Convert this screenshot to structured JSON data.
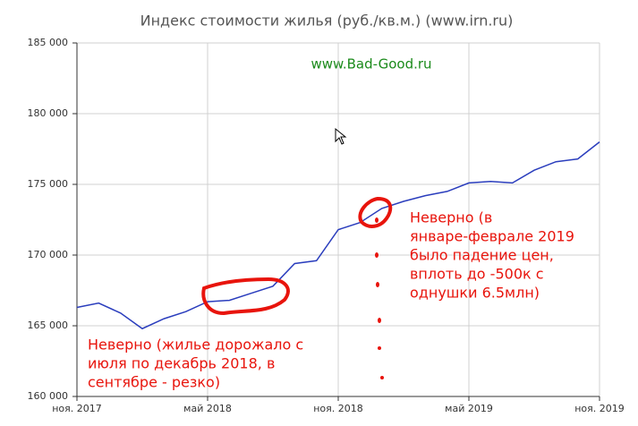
{
  "chart_data": {
    "type": "line",
    "title": "Индекс стоимости жилья (руб./кв.м.) (www.irn.ru)",
    "watermark": "www.Bad-Good.ru",
    "x": [
      "2017-11",
      "2017-12",
      "2018-01",
      "2018-02",
      "2018-03",
      "2018-04",
      "2018-05",
      "2018-06",
      "2018-07",
      "2018-08",
      "2018-09",
      "2018-10",
      "2018-11",
      "2018-12",
      "2019-01",
      "2019-02",
      "2019-03",
      "2019-04",
      "2019-05",
      "2019-06",
      "2019-07",
      "2019-08",
      "2019-09",
      "2019-10",
      "2019-11"
    ],
    "series": [
      {
        "color": "#2a3dbd",
        "values": [
          166300,
          166600,
          165900,
          164800,
          165500,
          166000,
          166700,
          166800,
          167300,
          167800,
          169400,
          169600,
          171800,
          172300,
          173300,
          173800,
          174200,
          174500,
          175100,
          175200,
          175100,
          176000,
          176600,
          176800,
          178000
        ]
      }
    ],
    "xlim": [
      "2017-11",
      "2019-11"
    ],
    "xticks": [
      {
        "value": "2017-11",
        "label": "ноя. 2017"
      },
      {
        "value": "2018-05",
        "label": "май 2018"
      },
      {
        "value": "2018-11",
        "label": "ноя. 2018"
      },
      {
        "value": "2019-05",
        "label": "май 2019"
      },
      {
        "value": "2019-11",
        "label": "ноя. 2019"
      }
    ],
    "ylim": [
      160000,
      185000
    ],
    "yticks": [
      {
        "value": 160000,
        "label": "160 000"
      },
      {
        "value": 165000,
        "label": "165 000"
      },
      {
        "value": 170000,
        "label": "170 000"
      },
      {
        "value": 175000,
        "label": "175 000"
      },
      {
        "value": 180000,
        "label": "180 000"
      },
      {
        "value": 185000,
        "label": "185 000"
      }
    ],
    "grid": true,
    "annotations": [
      {
        "lines": [
          "Неверно (жилье дорожало с",
          "июля по декабрь 2018, в",
          "сентябре - резко)"
        ],
        "color": "#e8140c"
      },
      {
        "lines": [
          "Неверно (в",
          "январе-феврале 2019",
          "было падение цен,",
          "вплоть до -500к с",
          "однушки 6.5млн)"
        ],
        "color": "#e8140c"
      }
    ]
  }
}
